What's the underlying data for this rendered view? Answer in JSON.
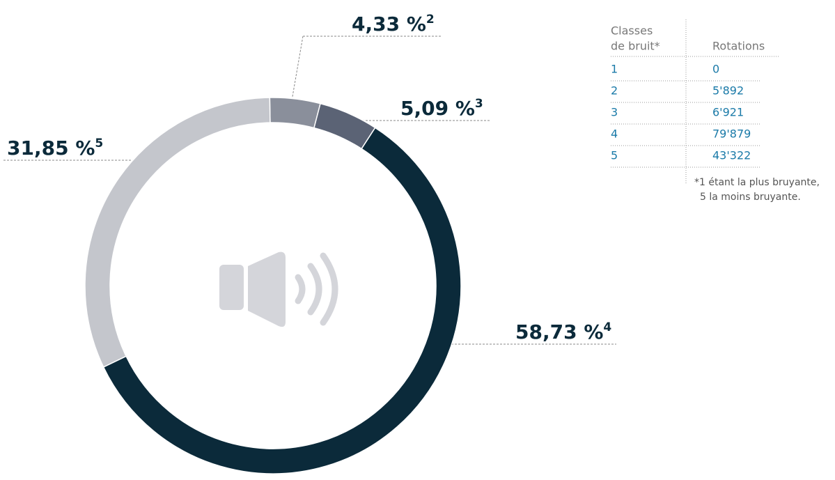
{
  "chart_data": {
    "type": "donut",
    "categories": [
      "2",
      "3",
      "4",
      "5"
    ],
    "values": [
      4.33,
      5.09,
      58.73,
      31.85
    ],
    "value_labels": [
      "4,33 %",
      "5,09 %",
      "58,73 %",
      "31,85 %"
    ],
    "colors": [
      "#8a8f9b",
      "#5b6375",
      "#0b2a3a",
      "#c4c6cc"
    ]
  },
  "table": {
    "header": [
      [
        "Classes",
        "de bruit*"
      ],
      [
        "Rotations"
      ]
    ],
    "rows": [
      [
        "1",
        "0"
      ],
      [
        "2",
        "5'892"
      ],
      [
        "3",
        "6'921"
      ],
      [
        "4",
        "79'879"
      ],
      [
        "5",
        "43'322"
      ]
    ],
    "footnote": [
      "*1 étant la plus bruyante,",
      "5 la moins bruyante."
    ]
  }
}
